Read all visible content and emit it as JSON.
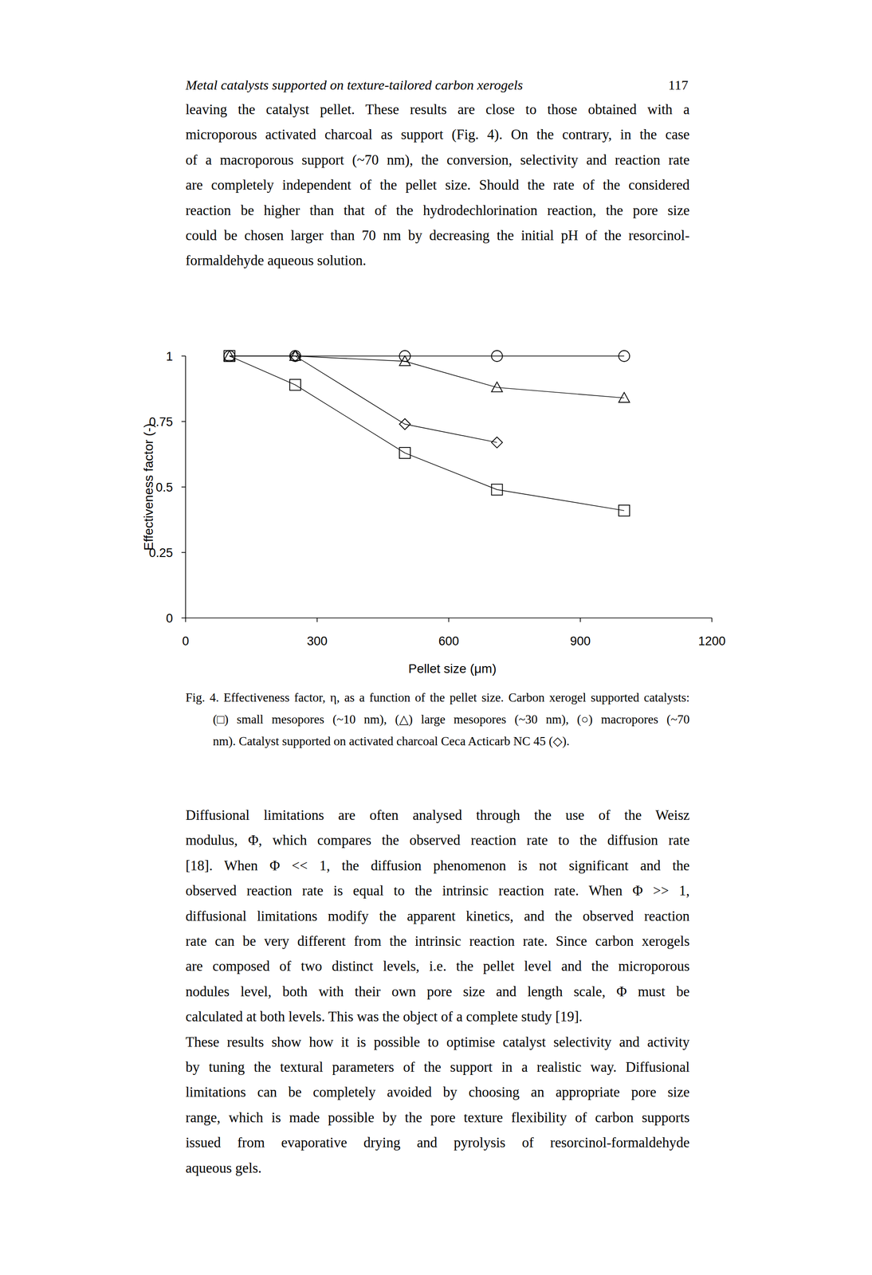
{
  "header": {
    "title": "Metal catalysts supported on texture-tailored carbon xerogels",
    "page_number": "117"
  },
  "paragraphs_top": [
    [
      "leaving the catalyst pellet. These results are close to those obtained with a",
      "microporous activated charcoal as support (Fig. 4). On the contrary, in the case",
      "of a macroporous support (~70 nm), the conversion, selectivity and reaction rate",
      "are completely independent of the pellet size. Should the rate of the considered",
      "reaction be higher than that of the hydrodechlorination reaction, the pore size",
      "could be chosen larger than 70 nm by decreasing the initial pH of the resorcinol-",
      "formaldehyde aqueous solution."
    ]
  ],
  "chart_data": {
    "type": "line",
    "x_label": "Pellet size (μm)",
    "y_label": "Effectiveness factor (-)",
    "xlim": [
      0,
      1200
    ],
    "xticks": [
      0,
      300,
      600,
      900,
      1200
    ],
    "ylim": [
      0,
      1
    ],
    "yticks": [
      0,
      0.25,
      0.5,
      0.75,
      1
    ],
    "grid": false,
    "series": [
      {
        "color": "#000000",
        "marker": "square",
        "x": [
          100,
          250,
          500,
          710,
          1000
        ],
        "values": [
          1,
          0.89,
          0.63,
          0.49,
          0.41
        ]
      },
      {
        "color": "#000000",
        "marker": "triangle",
        "x": [
          100,
          250,
          500,
          710,
          1000
        ],
        "values": [
          1,
          1,
          0.98,
          0.88,
          0.84
        ]
      },
      {
        "color": "#000000",
        "marker": "circle",
        "x": [
          100,
          250,
          500,
          710,
          1000
        ],
        "values": [
          1,
          1,
          1,
          1,
          1
        ]
      },
      {
        "color": "#000000",
        "marker": "diamond",
        "x": [
          250,
          500,
          710
        ],
        "values": [
          1,
          0.74,
          0.67
        ]
      }
    ]
  },
  "caption": [
    "Fig. 4. Effectiveness factor, η, as a function of the pellet size. Carbon xerogel supported catalysts:",
    "(□) small mesopores (~10 nm), (△) large mesopores (~30 nm), (○) macropores (~70",
    "nm). Catalyst supported on activated charcoal Ceca Acticarb NC 45 (◇)."
  ],
  "paragraphs_bottom": [
    [
      "Diffusional limitations are often analysed through the use of the Weisz",
      "modulus, Φ, which compares the observed reaction rate to the diffusion rate",
      "[18]. When Φ << 1, the diffusion phenomenon is not significant and the",
      "observed reaction rate is equal to the intrinsic reaction rate. When Φ >> 1,",
      "diffusional limitations modify the apparent kinetics, and the observed reaction",
      "rate can be very different from the intrinsic reaction rate. Since carbon xerogels",
      "are composed of two distinct levels, i.e. the pellet level and the microporous",
      "nodules level, both with their own pore size and length scale, Φ must be",
      "calculated at both levels. This was the object of a complete study [19]."
    ],
    [
      "These results show how it is possible to optimise catalyst selectivity and activity",
      "by tuning the textural parameters of the support in a realistic way. Diffusional",
      "limitations can be completely avoided by choosing an appropriate pore size",
      "range, which is made possible by the pore texture flexibility of carbon supports",
      "issued from evaporative drying and pyrolysis of resorcinol-formaldehyde",
      "aqueous gels."
    ]
  ]
}
